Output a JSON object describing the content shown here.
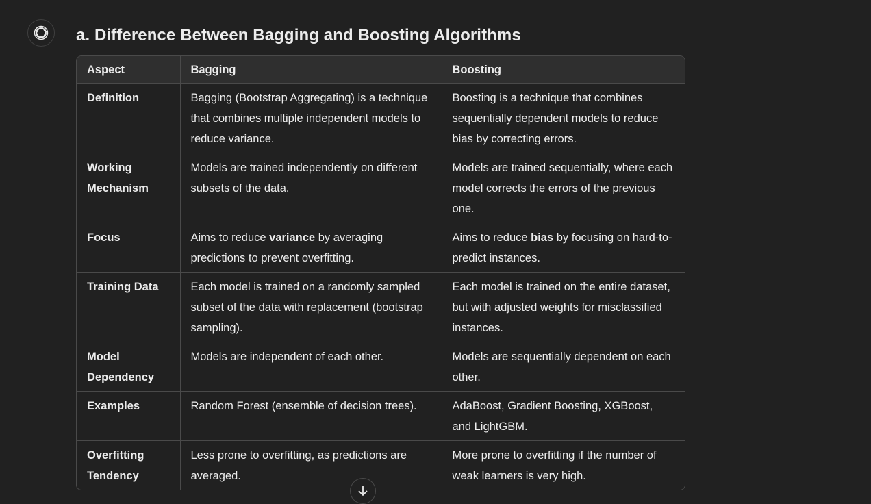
{
  "heading": "a. Difference Between Bagging and Boosting Algorithms",
  "assistant_icon": "openai-logo-icon",
  "scroll_icon": "arrow-down-icon",
  "table": {
    "headers": [
      "Aspect",
      "Bagging",
      "Boosting"
    ],
    "rows": [
      {
        "aspect": "Definition",
        "bagging": "Bagging (Bootstrap Aggregating) is a technique that combines multiple independent models to reduce variance.",
        "boosting": "Boosting is a technique that combines sequentially dependent models to reduce bias by correcting errors."
      },
      {
        "aspect": "Working Mechanism",
        "bagging": "Models are trained independently on different subsets of the data.",
        "boosting": "Models are trained sequentially, where each model corrects the errors of the previous one."
      },
      {
        "aspect": "Focus",
        "bagging_pre": "Aims to reduce ",
        "bagging_bold": "variance",
        "bagging_post": " by averaging predictions to prevent overfitting.",
        "boosting_pre": "Aims to reduce ",
        "boosting_bold": "bias",
        "boosting_post": " by focusing on hard-to-predict instances."
      },
      {
        "aspect": "Training Data",
        "bagging": "Each model is trained on a randomly sampled subset of the data with replacement (bootstrap sampling).",
        "boosting": "Each model is trained on the entire dataset, but with adjusted weights for misclassified instances."
      },
      {
        "aspect": "Model Dependency",
        "bagging": "Models are independent of each other.",
        "boosting": "Models are sequentially dependent on each other."
      },
      {
        "aspect": "Examples",
        "bagging": "Random Forest (ensemble of decision trees).",
        "boosting": "AdaBoost, Gradient Boosting, XGBoost, and LightGBM."
      },
      {
        "aspect": "Overfitting Tendency",
        "bagging": "Less prone to overfitting, as predictions are averaged.",
        "boosting": "More prone to overfitting if the number of weak learners is very high."
      }
    ]
  }
}
